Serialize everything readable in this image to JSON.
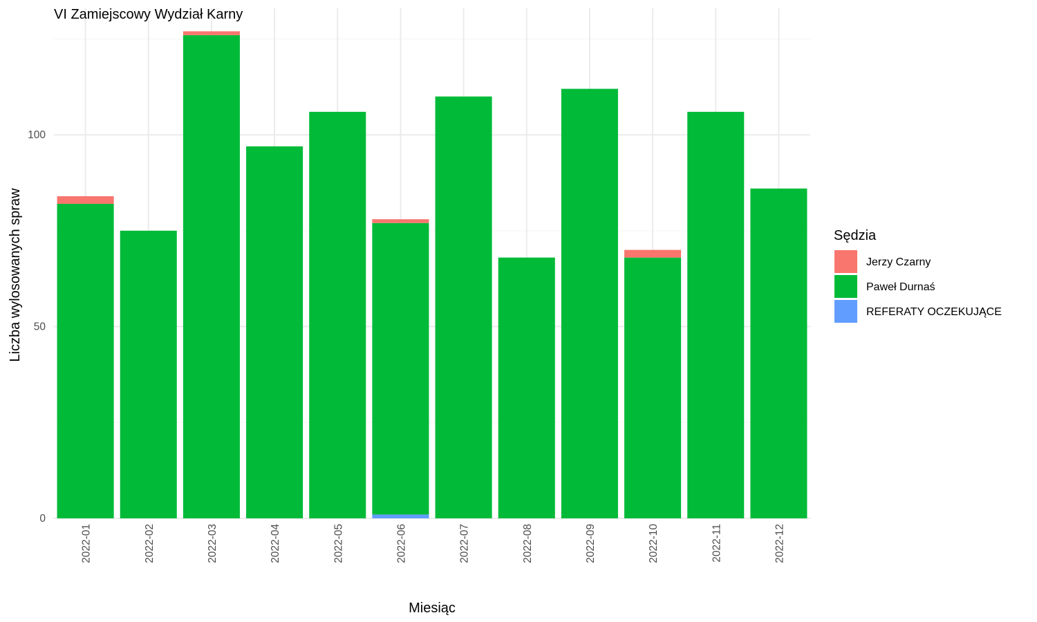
{
  "chart_data": {
    "type": "bar",
    "stacked": true,
    "title": "VI Zamiejscowy Wydział Karny",
    "xlabel": "Miesiąc",
    "ylabel": "Liczba wylosowanych spraw",
    "ylim": [
      0,
      133
    ],
    "yticks": [
      0,
      50,
      100
    ],
    "grid": true,
    "legend_position": "right",
    "legend_title": "Sędzia",
    "categories": [
      "2022-01",
      "2022-02",
      "2022-03",
      "2022-04",
      "2022-05",
      "2022-06",
      "2022-07",
      "2022-08",
      "2022-09",
      "2022-10",
      "2022-11",
      "2022-12"
    ],
    "series": [
      {
        "name": "REFERATY OCZEKUJĄCE",
        "color": "#619CFF",
        "values": [
          0,
          0,
          0,
          0,
          0,
          1,
          0,
          0,
          0,
          0,
          0,
          0
        ]
      },
      {
        "name": "Paweł Durnaś",
        "color": "#00BA38",
        "values": [
          82,
          75,
          126,
          97,
          106,
          76,
          110,
          68,
          112,
          68,
          106,
          86
        ]
      },
      {
        "name": "Jerzy Czarny",
        "color": "#F8766D",
        "values": [
          2,
          0,
          1,
          0,
          0,
          1,
          0,
          0,
          0,
          2,
          0,
          0
        ]
      }
    ],
    "legend_order": [
      "Jerzy Czarny",
      "Paweł Durnaś",
      "REFERATY OCZEKUJĄCE"
    ]
  }
}
